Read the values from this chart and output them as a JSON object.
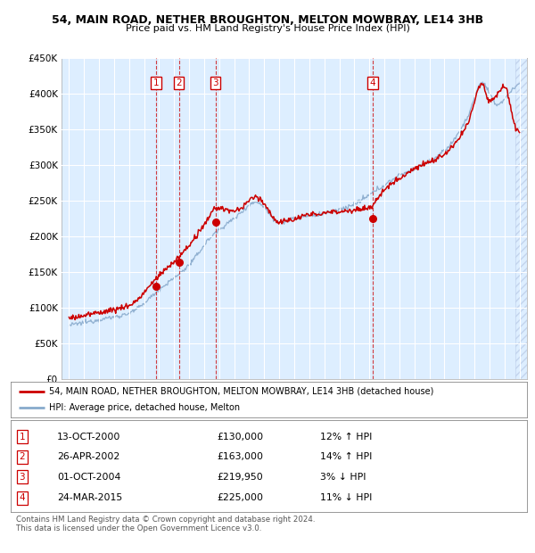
{
  "title": "54, MAIN ROAD, NETHER BROUGHTON, MELTON MOWBRAY, LE14 3HB",
  "subtitle": "Price paid vs. HM Land Registry's House Price Index (HPI)",
  "legend_line1": "54, MAIN ROAD, NETHER BROUGHTON, MELTON MOWBRAY, LE14 3HB (detached house)",
  "legend_line2": "HPI: Average price, detached house, Melton",
  "red_color": "#cc0000",
  "blue_color": "#88aacc",
  "background_color": "#ddeeff",
  "transactions": [
    {
      "num": 1,
      "date": "13-OCT-2000",
      "price": "£130,000",
      "hpi": "12% ↑ HPI",
      "year": 2000.79
    },
    {
      "num": 2,
      "date": "26-APR-2002",
      "price": "£163,000",
      "hpi": "14% ↑ HPI",
      "year": 2002.32
    },
    {
      "num": 3,
      "date": "01-OCT-2004",
      "price": "£219,950",
      "hpi": "3% ↓ HPI",
      "year": 2004.75
    },
    {
      "num": 4,
      "date": "24-MAR-2015",
      "price": "£225,000",
      "hpi": "11% ↓ HPI",
      "year": 2015.23
    }
  ],
  "ylim": [
    0,
    450000
  ],
  "xlim_start": 1994.5,
  "xlim_end": 2025.5,
  "footer": "Contains HM Land Registry data © Crown copyright and database right 2024.\nThis data is licensed under the Open Government Licence v3.0."
}
